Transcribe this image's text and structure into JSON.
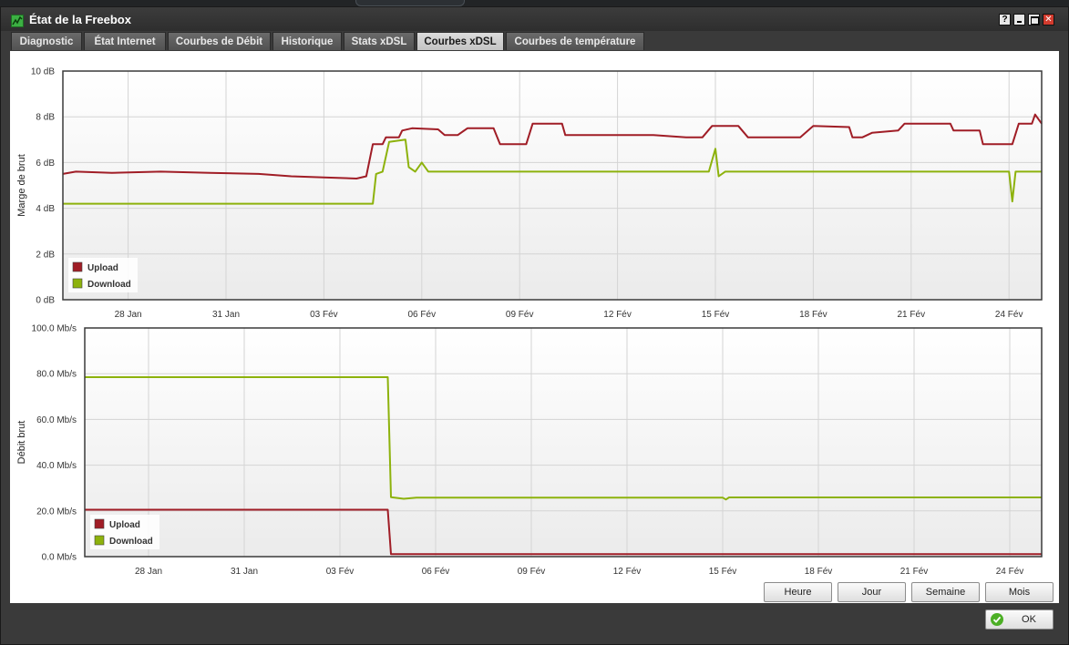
{
  "window": {
    "title": "État de la Freebox",
    "controls": [
      "help-icon",
      "minimize-icon",
      "maximize-icon",
      "close-icon"
    ]
  },
  "tabs": [
    {
      "label": "Diagnostic",
      "active": false
    },
    {
      "label": "État Internet",
      "active": false
    },
    {
      "label": "Courbes de Débit",
      "active": false
    },
    {
      "label": "Historique",
      "active": false
    },
    {
      "label": "Stats xDSL",
      "active": false
    },
    {
      "label": "Courbes xDSL",
      "active": true
    },
    {
      "label": "Courbes de température",
      "active": false
    }
  ],
  "colors": {
    "upload": "#a01d26",
    "download": "#8db20c",
    "accent": "#3cb043"
  },
  "chart_data": [
    {
      "type": "line",
      "ylabel": "Marge de brut",
      "ylim": [
        0,
        10
      ],
      "yticks": [
        "0 dB",
        "2 dB",
        "4 dB",
        "6 dB",
        "8 dB",
        "10 dB"
      ],
      "xlim": [
        0,
        30
      ],
      "xticks": [
        {
          "t": 2,
          "label": "28 Jan"
        },
        {
          "t": 5,
          "label": "31 Jan"
        },
        {
          "t": 8,
          "label": "03 Fév"
        },
        {
          "t": 11,
          "label": "06 Fév"
        },
        {
          "t": 14,
          "label": "09 Fév"
        },
        {
          "t": 17,
          "label": "12 Fév"
        },
        {
          "t": 20,
          "label": "15 Fév"
        },
        {
          "t": 23,
          "label": "18 Fév"
        },
        {
          "t": 26,
          "label": "21 Fév"
        },
        {
          "t": 29,
          "label": "24 Fév"
        }
      ],
      "legend": {
        "placement": "bottom-left",
        "entries": [
          "Upload",
          "Download"
        ]
      },
      "grid": true,
      "series": [
        {
          "name": "Upload",
          "color": "#a01d26",
          "points": [
            [
              0,
              5.5
            ],
            [
              0.4,
              5.6
            ],
            [
              1.5,
              5.55
            ],
            [
              3,
              5.6
            ],
            [
              4.5,
              5.55
            ],
            [
              6,
              5.5
            ],
            [
              7,
              5.4
            ],
            [
              8,
              5.35
            ],
            [
              9,
              5.3
            ],
            [
              9.3,
              5.4
            ],
            [
              9.5,
              6.8
            ],
            [
              9.8,
              6.8
            ],
            [
              9.9,
              7.1
            ],
            [
              10.3,
              7.1
            ],
            [
              10.4,
              7.4
            ],
            [
              10.7,
              7.5
            ],
            [
              11.5,
              7.45
            ],
            [
              11.7,
              7.2
            ],
            [
              12.1,
              7.2
            ],
            [
              12.4,
              7.5
            ],
            [
              13.2,
              7.5
            ],
            [
              13.4,
              6.8
            ],
            [
              14.2,
              6.8
            ],
            [
              14.4,
              7.7
            ],
            [
              15.3,
              7.7
            ],
            [
              15.4,
              7.2
            ],
            [
              16.1,
              7.2
            ],
            [
              16.6,
              7.2
            ],
            [
              18.1,
              7.2
            ],
            [
              19.1,
              7.1
            ],
            [
              19.6,
              7.1
            ],
            [
              19.9,
              7.6
            ],
            [
              20.7,
              7.6
            ],
            [
              21,
              7.1
            ],
            [
              22.6,
              7.1
            ],
            [
              23,
              7.6
            ],
            [
              24.1,
              7.55
            ],
            [
              24.2,
              7.1
            ],
            [
              24.5,
              7.1
            ],
            [
              24.8,
              7.3
            ],
            [
              25.6,
              7.4
            ],
            [
              25.8,
              7.7
            ],
            [
              27.2,
              7.7
            ],
            [
              27.3,
              7.4
            ],
            [
              28.1,
              7.4
            ],
            [
              28.2,
              6.8
            ],
            [
              29.1,
              6.8
            ],
            [
              29.3,
              7.7
            ],
            [
              29.7,
              7.7
            ],
            [
              29.8,
              8.1
            ],
            [
              30,
              7.7
            ]
          ]
        },
        {
          "name": "Download",
          "color": "#8db20c",
          "points": [
            [
              0,
              4.2
            ],
            [
              9.5,
              4.2
            ],
            [
              9.6,
              5.5
            ],
            [
              9.8,
              5.6
            ],
            [
              10.0,
              6.9
            ],
            [
              10.5,
              7.0
            ],
            [
              10.6,
              5.8
            ],
            [
              10.8,
              5.6
            ],
            [
              11.0,
              6.0
            ],
            [
              11.2,
              5.6
            ],
            [
              19.8,
              5.6
            ],
            [
              20.0,
              6.6
            ],
            [
              20.1,
              5.4
            ],
            [
              20.3,
              5.6
            ],
            [
              29.0,
              5.6
            ],
            [
              29.1,
              4.3
            ],
            [
              29.2,
              5.6
            ],
            [
              30,
              5.6
            ]
          ]
        }
      ]
    },
    {
      "type": "line",
      "ylabel": "Débit brut",
      "ylim": [
        0,
        100
      ],
      "yticks": [
        "0.0 Mb/s",
        "20.0 Mb/s",
        "40.0 Mb/s",
        "60.0 Mb/s",
        "80.0 Mb/s",
        "100.0 Mb/s"
      ],
      "xlim": [
        0,
        30
      ],
      "xticks": [
        {
          "t": 2,
          "label": "28 Jan"
        },
        {
          "t": 5,
          "label": "31 Jan"
        },
        {
          "t": 8,
          "label": "03 Fév"
        },
        {
          "t": 11,
          "label": "06 Fév"
        },
        {
          "t": 14,
          "label": "09 Fév"
        },
        {
          "t": 17,
          "label": "12 Fév"
        },
        {
          "t": 20,
          "label": "15 Fév"
        },
        {
          "t": 23,
          "label": "18 Fév"
        },
        {
          "t": 26,
          "label": "21 Fév"
        },
        {
          "t": 29,
          "label": "24 Fév"
        }
      ],
      "legend": {
        "placement": "bottom-left",
        "entries": [
          "Upload",
          "Download"
        ]
      },
      "grid": true,
      "series": [
        {
          "name": "Upload",
          "color": "#a01d26",
          "points": [
            [
              0,
              20.5
            ],
            [
              9.5,
              20.5
            ],
            [
              9.6,
              1.1
            ],
            [
              30,
              1.1
            ]
          ]
        },
        {
          "name": "Download",
          "color": "#8db20c",
          "points": [
            [
              0,
              78.5
            ],
            [
              9.5,
              78.5
            ],
            [
              9.6,
              26.0
            ],
            [
              10.0,
              25.3
            ],
            [
              10.4,
              25.8
            ],
            [
              20.0,
              25.8
            ],
            [
              20.1,
              25.0
            ],
            [
              20.2,
              25.9
            ],
            [
              30,
              25.9
            ]
          ]
        }
      ]
    }
  ],
  "range_buttons": [
    "Heure",
    "Jour",
    "Semaine",
    "Mois"
  ],
  "ok_button": {
    "label": "OK",
    "icon": "check-circle-icon"
  }
}
